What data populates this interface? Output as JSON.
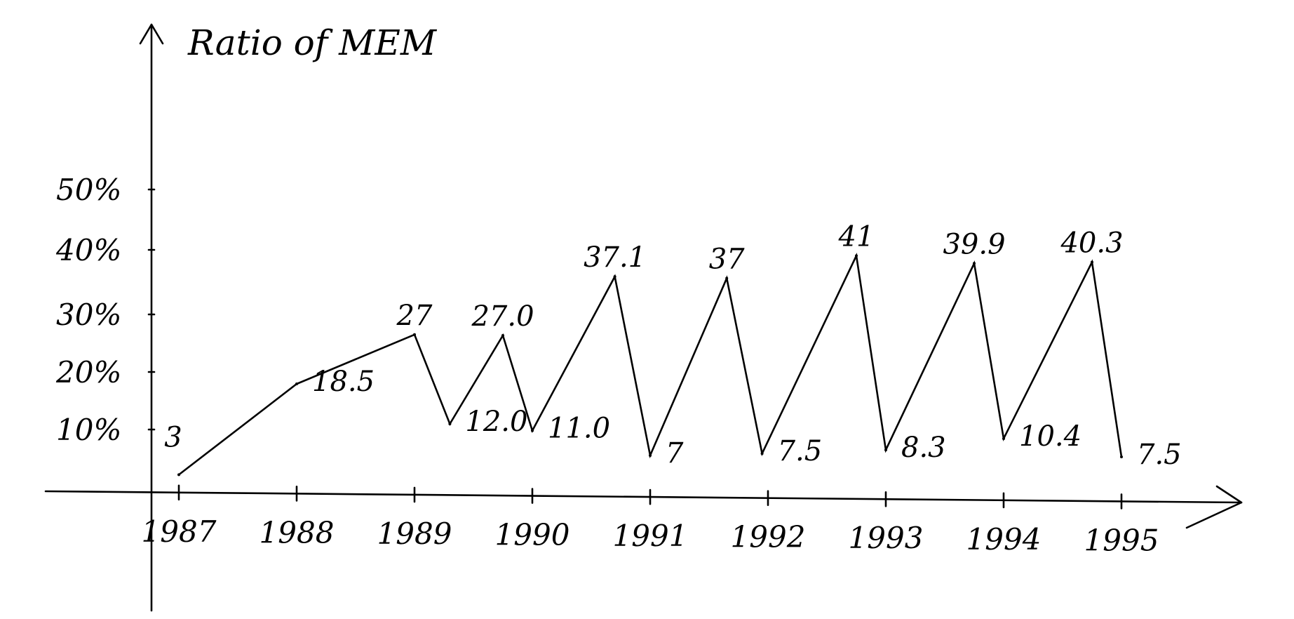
{
  "chart_data": {
    "type": "line",
    "ylabel": "Ratio of MEM",
    "xlabel": "",
    "yticks": [
      "10%",
      "20%",
      "30%",
      "40%",
      "50%"
    ],
    "xticks": [
      "1987",
      "1988",
      "1989",
      "1990",
      "1991",
      "1992",
      "1993",
      "1994",
      "1995"
    ],
    "ylim": [
      0,
      55
    ],
    "xlim": [
      1986.75,
      1995.6
    ],
    "grid": false,
    "points": [
      {
        "x": 1987.0,
        "y": 3.0,
        "label": "3"
      },
      {
        "x": 1988.0,
        "y": 18.5,
        "label": "18.5"
      },
      {
        "x": 1989.0,
        "y": 27.0,
        "label": "27"
      },
      {
        "x": 1989.3,
        "y": 12.0,
        "label": "12.0"
      },
      {
        "x": 1989.75,
        "y": 27.0,
        "label": "27.0"
      },
      {
        "x": 1990.0,
        "y": 11.0,
        "label": "11.0"
      },
      {
        "x": 1990.7,
        "y": 37.1,
        "label": "37.1"
      },
      {
        "x": 1991.0,
        "y": 7.0,
        "label": "7"
      },
      {
        "x": 1991.65,
        "y": 37.0,
        "label": "37"
      },
      {
        "x": 1991.95,
        "y": 7.5,
        "label": "7.5"
      },
      {
        "x": 1992.75,
        "y": 41.0,
        "label": "41"
      },
      {
        "x": 1993.0,
        "y": 8.3,
        "label": "8.3"
      },
      {
        "x": 1993.75,
        "y": 39.9,
        "label": "39.9"
      },
      {
        "x": 1994.0,
        "y": 10.4,
        "label": "10.4"
      },
      {
        "x": 1994.75,
        "y": 40.3,
        "label": "40.3"
      },
      {
        "x": 1995.0,
        "y": 7.5,
        "label": "7.5"
      }
    ]
  }
}
